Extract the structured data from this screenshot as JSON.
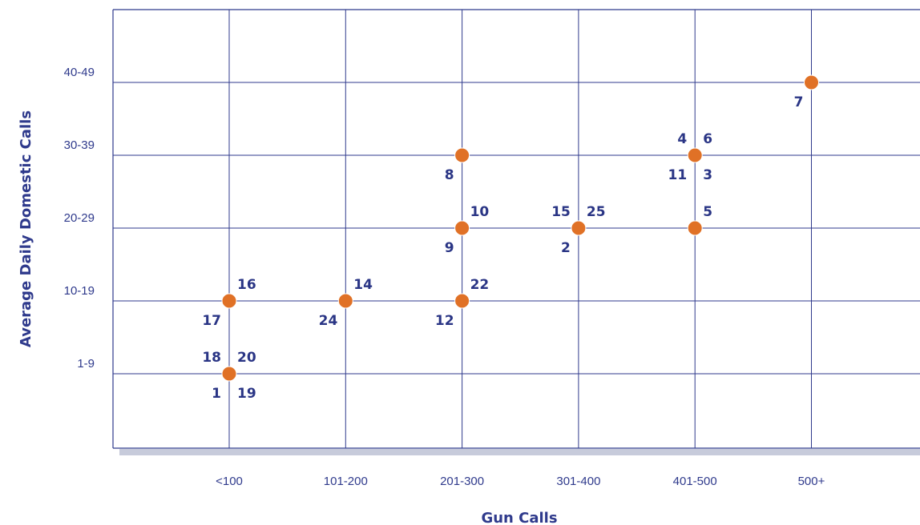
{
  "chart_data": {
    "type": "scatter",
    "title": "",
    "xlabel": "Gun Calls",
    "ylabel": "Average Daily Domestic Calls",
    "x_categories": [
      "<100",
      "101-200",
      "201-300",
      "301-400",
      "401-500",
      "500+"
    ],
    "y_categories": [
      "1-9",
      "10-19",
      "20-29",
      "30-39",
      "40-49"
    ],
    "grid": true,
    "colors": {
      "point": "#e07126",
      "text": "#2f3a8c"
    },
    "points": [
      {
        "x": "<100",
        "y": "1-9",
        "labels": {
          "tl": "18",
          "tr": "20",
          "bl": "1",
          "br": "19"
        }
      },
      {
        "x": "<100",
        "y": "10-19",
        "labels": {
          "tr": "16",
          "bl": "17"
        }
      },
      {
        "x": "101-200",
        "y": "10-19",
        "labels": {
          "tr": "14",
          "bl": "24"
        }
      },
      {
        "x": "201-300",
        "y": "10-19",
        "labels": {
          "tr": "22",
          "bl": "12"
        }
      },
      {
        "x": "201-300",
        "y": "20-29",
        "labels": {
          "tr": "10",
          "bl": "9"
        }
      },
      {
        "x": "201-300",
        "y": "30-39",
        "labels": {
          "bl": "8"
        }
      },
      {
        "x": "301-400",
        "y": "20-29",
        "labels": {
          "tl": "15",
          "tr": "25",
          "bl": "2"
        }
      },
      {
        "x": "401-500",
        "y": "20-29",
        "labels": {
          "tr": "5"
        }
      },
      {
        "x": "401-500",
        "y": "30-39",
        "labels": {
          "tl": "4",
          "tr": "6",
          "bl": "11",
          "br": "3"
        }
      },
      {
        "x": "500+",
        "y": "40-49",
        "labels": {
          "bl": "7"
        }
      }
    ]
  }
}
